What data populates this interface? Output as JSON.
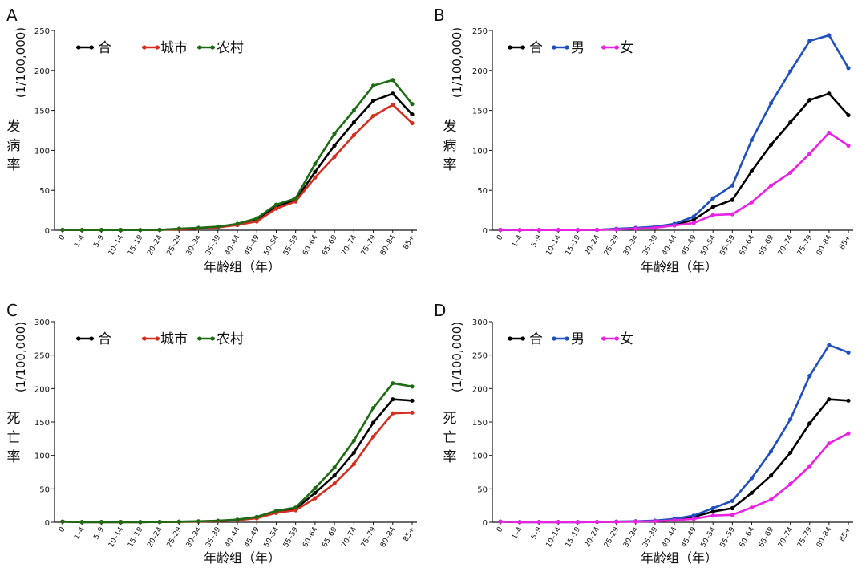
{
  "chart_data": [
    {
      "panel": "A",
      "type": "line",
      "ylabel_unit": "(1/100,000)",
      "ylabel_text": "发病率",
      "xlabel": "年龄组（年）",
      "ylim": [
        0,
        250
      ],
      "yticks": [
        0,
        50,
        100,
        150,
        200,
        250
      ],
      "categories": [
        "0",
        "1–4",
        "5–9",
        "10–14",
        "15–19",
        "20–24",
        "25–29",
        "30–34",
        "35–39",
        "40–44",
        "45–49",
        "50–54",
        "55–59",
        "60–64",
        "65–69",
        "70–74",
        "75–79",
        "80–84",
        "85+"
      ],
      "legend_position": "top-left",
      "series": [
        {
          "name": "合",
          "color": "#000000",
          "values": [
            0.5,
            0.3,
            0.3,
            0.3,
            0.3,
            0.5,
            1.5,
            2.5,
            4,
            7,
            13,
            30,
            38,
            73,
            106,
            135,
            162,
            171,
            145
          ]
        },
        {
          "name": "城市",
          "color": "#d42e1f",
          "values": [
            0.5,
            0.3,
            0.3,
            0.3,
            0.3,
            0.5,
            1.2,
            2,
            3.5,
            6.5,
            11,
            27,
            36,
            66,
            92,
            119,
            143,
            157,
            134
          ]
        },
        {
          "name": "农村",
          "color": "#1d6b12",
          "values": [
            0.5,
            0.3,
            0.3,
            0.3,
            0.3,
            0.5,
            2,
            3,
            4.5,
            8,
            15,
            32,
            40,
            83,
            121,
            150,
            181,
            188,
            158
          ]
        }
      ]
    },
    {
      "panel": "B",
      "type": "line",
      "ylabel_unit": "(1/100,000)",
      "ylabel_text": "发病率",
      "xlabel": "年龄组（年）",
      "ylim": [
        0,
        250
      ],
      "yticks": [
        0,
        50,
        100,
        150,
        200,
        250
      ],
      "categories": [
        "0",
        "1–4",
        "5–9",
        "10–14",
        "15–19",
        "20–24",
        "25–29",
        "30–34",
        "35–39",
        "40–44",
        "45–49",
        "50–54",
        "55–59",
        "60–64",
        "65–69",
        "70–74",
        "75–79",
        "80–84",
        "85+"
      ],
      "legend_position": "top-left",
      "series": [
        {
          "name": "合",
          "color": "#000000",
          "values": [
            0.5,
            0.3,
            0.3,
            0.3,
            0.3,
            0.5,
            1.5,
            2.5,
            4,
            7,
            13,
            29,
            38,
            74,
            107,
            135,
            163,
            171,
            144
          ]
        },
        {
          "name": "男",
          "color": "#1f4fbf",
          "values": [
            0.5,
            0.3,
            0.3,
            0.3,
            0.3,
            0.5,
            1.8,
            3,
            4.5,
            8,
            17,
            40,
            56,
            113,
            159,
            199,
            237,
            244,
            203
          ]
        },
        {
          "name": "女",
          "color": "#ea22e3",
          "values": [
            0.5,
            0.3,
            0.3,
            0.3,
            0.3,
            0.5,
            1,
            2,
            3,
            6,
            9,
            19,
            20,
            35,
            56,
            72,
            96,
            122,
            106
          ]
        }
      ]
    },
    {
      "panel": "C",
      "type": "line",
      "ylabel_unit": "(1/100,000)",
      "ylabel_text": "死亡率",
      "xlabel": "年龄组（年）",
      "ylim": [
        0,
        300
      ],
      "yticks": [
        0,
        50,
        100,
        150,
        200,
        250,
        300
      ],
      "categories": [
        "0",
        "1–4",
        "5–9",
        "10–14",
        "15–19",
        "20–24",
        "25–29",
        "30–34",
        "35–39",
        "40–44",
        "45–49",
        "50–54",
        "55–59",
        "60–64",
        "65–69",
        "70–74",
        "75–79",
        "80–84",
        "85+"
      ],
      "legend_position": "top-left",
      "series": [
        {
          "name": "合",
          "color": "#000000",
          "values": [
            1,
            0.3,
            0.3,
            0.3,
            0.3,
            0.5,
            0.8,
            1.2,
            2,
            3.5,
            7,
            16,
            20,
            44,
            70,
            104,
            149,
            184,
            182
          ]
        },
        {
          "name": "城市",
          "color": "#d42e1f",
          "values": [
            1,
            0.3,
            0.3,
            0.3,
            0.3,
            0.5,
            0.7,
            1,
            1.8,
            3,
            6,
            14,
            18,
            36,
            58,
            87,
            128,
            163,
            164
          ]
        },
        {
          "name": "农村",
          "color": "#1d6b12",
          "values": [
            1,
            0.3,
            0.3,
            0.3,
            0.3,
            0.5,
            0.9,
            1.4,
            2.3,
            4,
            8,
            17,
            22,
            51,
            82,
            122,
            171,
            208,
            203
          ]
        }
      ]
    },
    {
      "panel": "D",
      "type": "line",
      "ylabel_unit": "(1/100,000)",
      "ylabel_text": "死亡率",
      "xlabel": "年龄组（年）",
      "ylim": [
        0,
        300
      ],
      "yticks": [
        0,
        50,
        100,
        150,
        200,
        250,
        300
      ],
      "categories": [
        "0",
        "1–4",
        "5–9",
        "10–14",
        "15–19",
        "20–24",
        "25–29",
        "30–34",
        "35–39",
        "40–44",
        "45–49",
        "50–54",
        "55–59",
        "60–64",
        "65–69",
        "70–74",
        "75–79",
        "80–84",
        "85+"
      ],
      "legend_position": "top-left",
      "series": [
        {
          "name": "合",
          "color": "#000000",
          "values": [
            1,
            0.3,
            0.3,
            0.3,
            0.3,
            0.5,
            0.8,
            1.2,
            2,
            4,
            8,
            16,
            21,
            44,
            70,
            104,
            148,
            184,
            182
          ]
        },
        {
          "name": "男",
          "color": "#1f4fbf",
          "values": [
            1,
            0.3,
            0.3,
            0.3,
            0.3,
            0.5,
            1,
            1.5,
            2.5,
            5,
            10,
            21,
            32,
            66,
            106,
            154,
            219,
            265,
            254
          ]
        },
        {
          "name": "女",
          "color": "#ea22e3",
          "values": [
            1,
            0.3,
            0.3,
            0.3,
            0.3,
            0.5,
            0.6,
            1,
            1.5,
            3,
            5,
            10,
            11,
            22,
            34,
            57,
            84,
            118,
            133
          ]
        }
      ]
    }
  ]
}
